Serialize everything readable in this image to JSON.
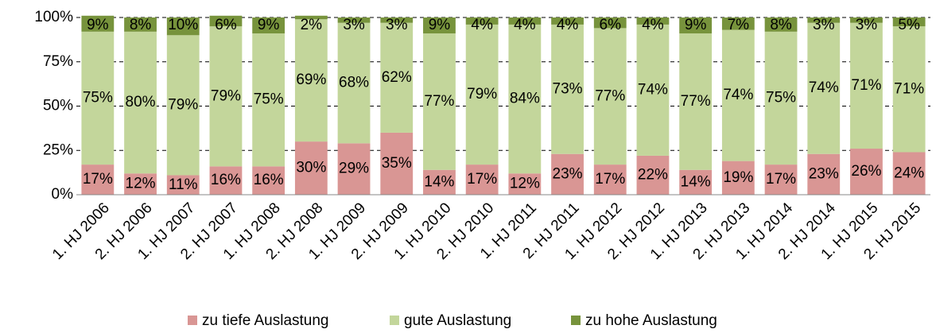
{
  "chart_data": {
    "type": "stacked_bar",
    "categories": [
      "1. HJ 2006",
      "2. HJ 2006",
      "1. HJ 2007",
      "2. HJ 2007",
      "1. HJ 2008",
      "2. HJ 2008",
      "1. HJ 2009",
      "2. HJ 2009",
      "1. HJ 2010",
      "2. HJ 2010",
      "1. HJ 2011",
      "2. HJ 2011",
      "1. HJ 2012",
      "2. HJ 2012",
      "1. HJ 2013",
      "2. HJ 2013",
      "1. HJ 2014",
      "2. HJ 2014",
      "1. HJ 2015",
      "2. HJ 2015"
    ],
    "series": [
      {
        "name": "zu tiefe Auslastung",
        "color": "#d99694",
        "values": [
          17,
          12,
          11,
          16,
          16,
          30,
          29,
          35,
          14,
          17,
          12,
          23,
          17,
          22,
          14,
          19,
          17,
          23,
          26,
          24
        ],
        "value_labels": [
          "17%",
          "12%",
          "11%",
          "16%",
          "16%",
          "30%",
          "29%",
          "35%",
          "14%",
          "17%",
          "12%",
          "23%",
          "17%",
          "22%",
          "14%",
          "19%",
          "17%",
          "23%",
          "26%",
          "24%"
        ]
      },
      {
        "name": "gute Auslastung",
        "color": "#c3d69b",
        "values": [
          75,
          80,
          79,
          79,
          75,
          69,
          68,
          62,
          77,
          79,
          84,
          73,
          77,
          74,
          77,
          74,
          75,
          74,
          71,
          71
        ],
        "value_labels": [
          "75%",
          "80%",
          "79%",
          "79%",
          "75%",
          "69%",
          "68%",
          "62%",
          "77%",
          "79%",
          "84%",
          "73%",
          "77%",
          "74%",
          "77%",
          "74%",
          "75%",
          "74%",
          "71%",
          "71%"
        ]
      },
      {
        "name": "zu hohe Auslastung",
        "color": "#77933c",
        "values": [
          9,
          8,
          10,
          6,
          9,
          2,
          3,
          3,
          9,
          4,
          4,
          4,
          6,
          4,
          9,
          7,
          8,
          3,
          3,
          5
        ],
        "value_labels": [
          "9%",
          "8%",
          "10%",
          "6%",
          "9%",
          "2%",
          "3%",
          "3%",
          "9%",
          "4%",
          "4%",
          "4%",
          "6%",
          "4%",
          "9%",
          "7%",
          "8%",
          "3%",
          "3%",
          "5%"
        ]
      }
    ],
    "ylim": [
      0,
      100
    ],
    "yticks": [
      {
        "value": 0,
        "label": "0%"
      },
      {
        "value": 25,
        "label": "25%"
      },
      {
        "value": 50,
        "label": "50%"
      },
      {
        "value": 75,
        "label": "75%"
      },
      {
        "value": 100,
        "label": "100%"
      }
    ],
    "grid": true,
    "legend": "bottom"
  }
}
